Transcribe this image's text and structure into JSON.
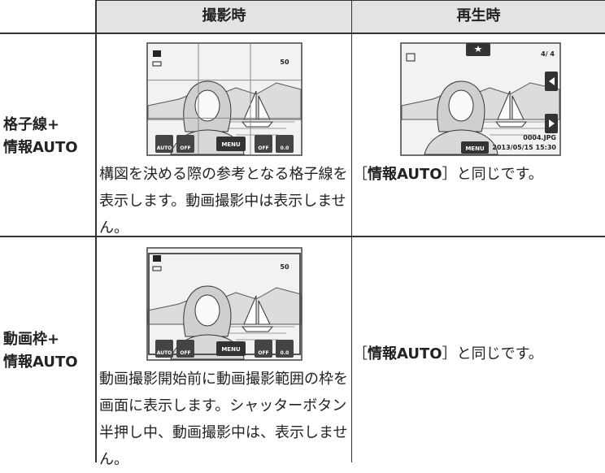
{
  "header": {
    "columns": [
      "撮影時",
      "再生時"
    ]
  },
  "rows": [
    {
      "label": [
        "格子線+",
        "情報AUTO"
      ],
      "shooting": "構図を決める際の参考となる格子線を表示します。動画撮影中は表示しません。",
      "playback": [
        "［",
        "情報AUTO",
        "］と同じです。"
      ]
    },
    {
      "label": [
        "動画枠+",
        "情報AUTO"
      ],
      "shooting": "動画撮影開始前に動画撮影範囲の枠を画面に表示します。シャッターボタン半押し中、動画撮影中は、表示しません。",
      "playback": [
        "［",
        "情報AUTO",
        "］と同じです。"
      ]
    }
  ],
  "screen": {
    "auto": "AUTO",
    "off": "OFF",
    "menu": "MENU",
    "ev": "0.0",
    "shots": "50",
    "count": "4/  4",
    "file": "0004.JPG",
    "date": "2013/05/15 15:30"
  }
}
